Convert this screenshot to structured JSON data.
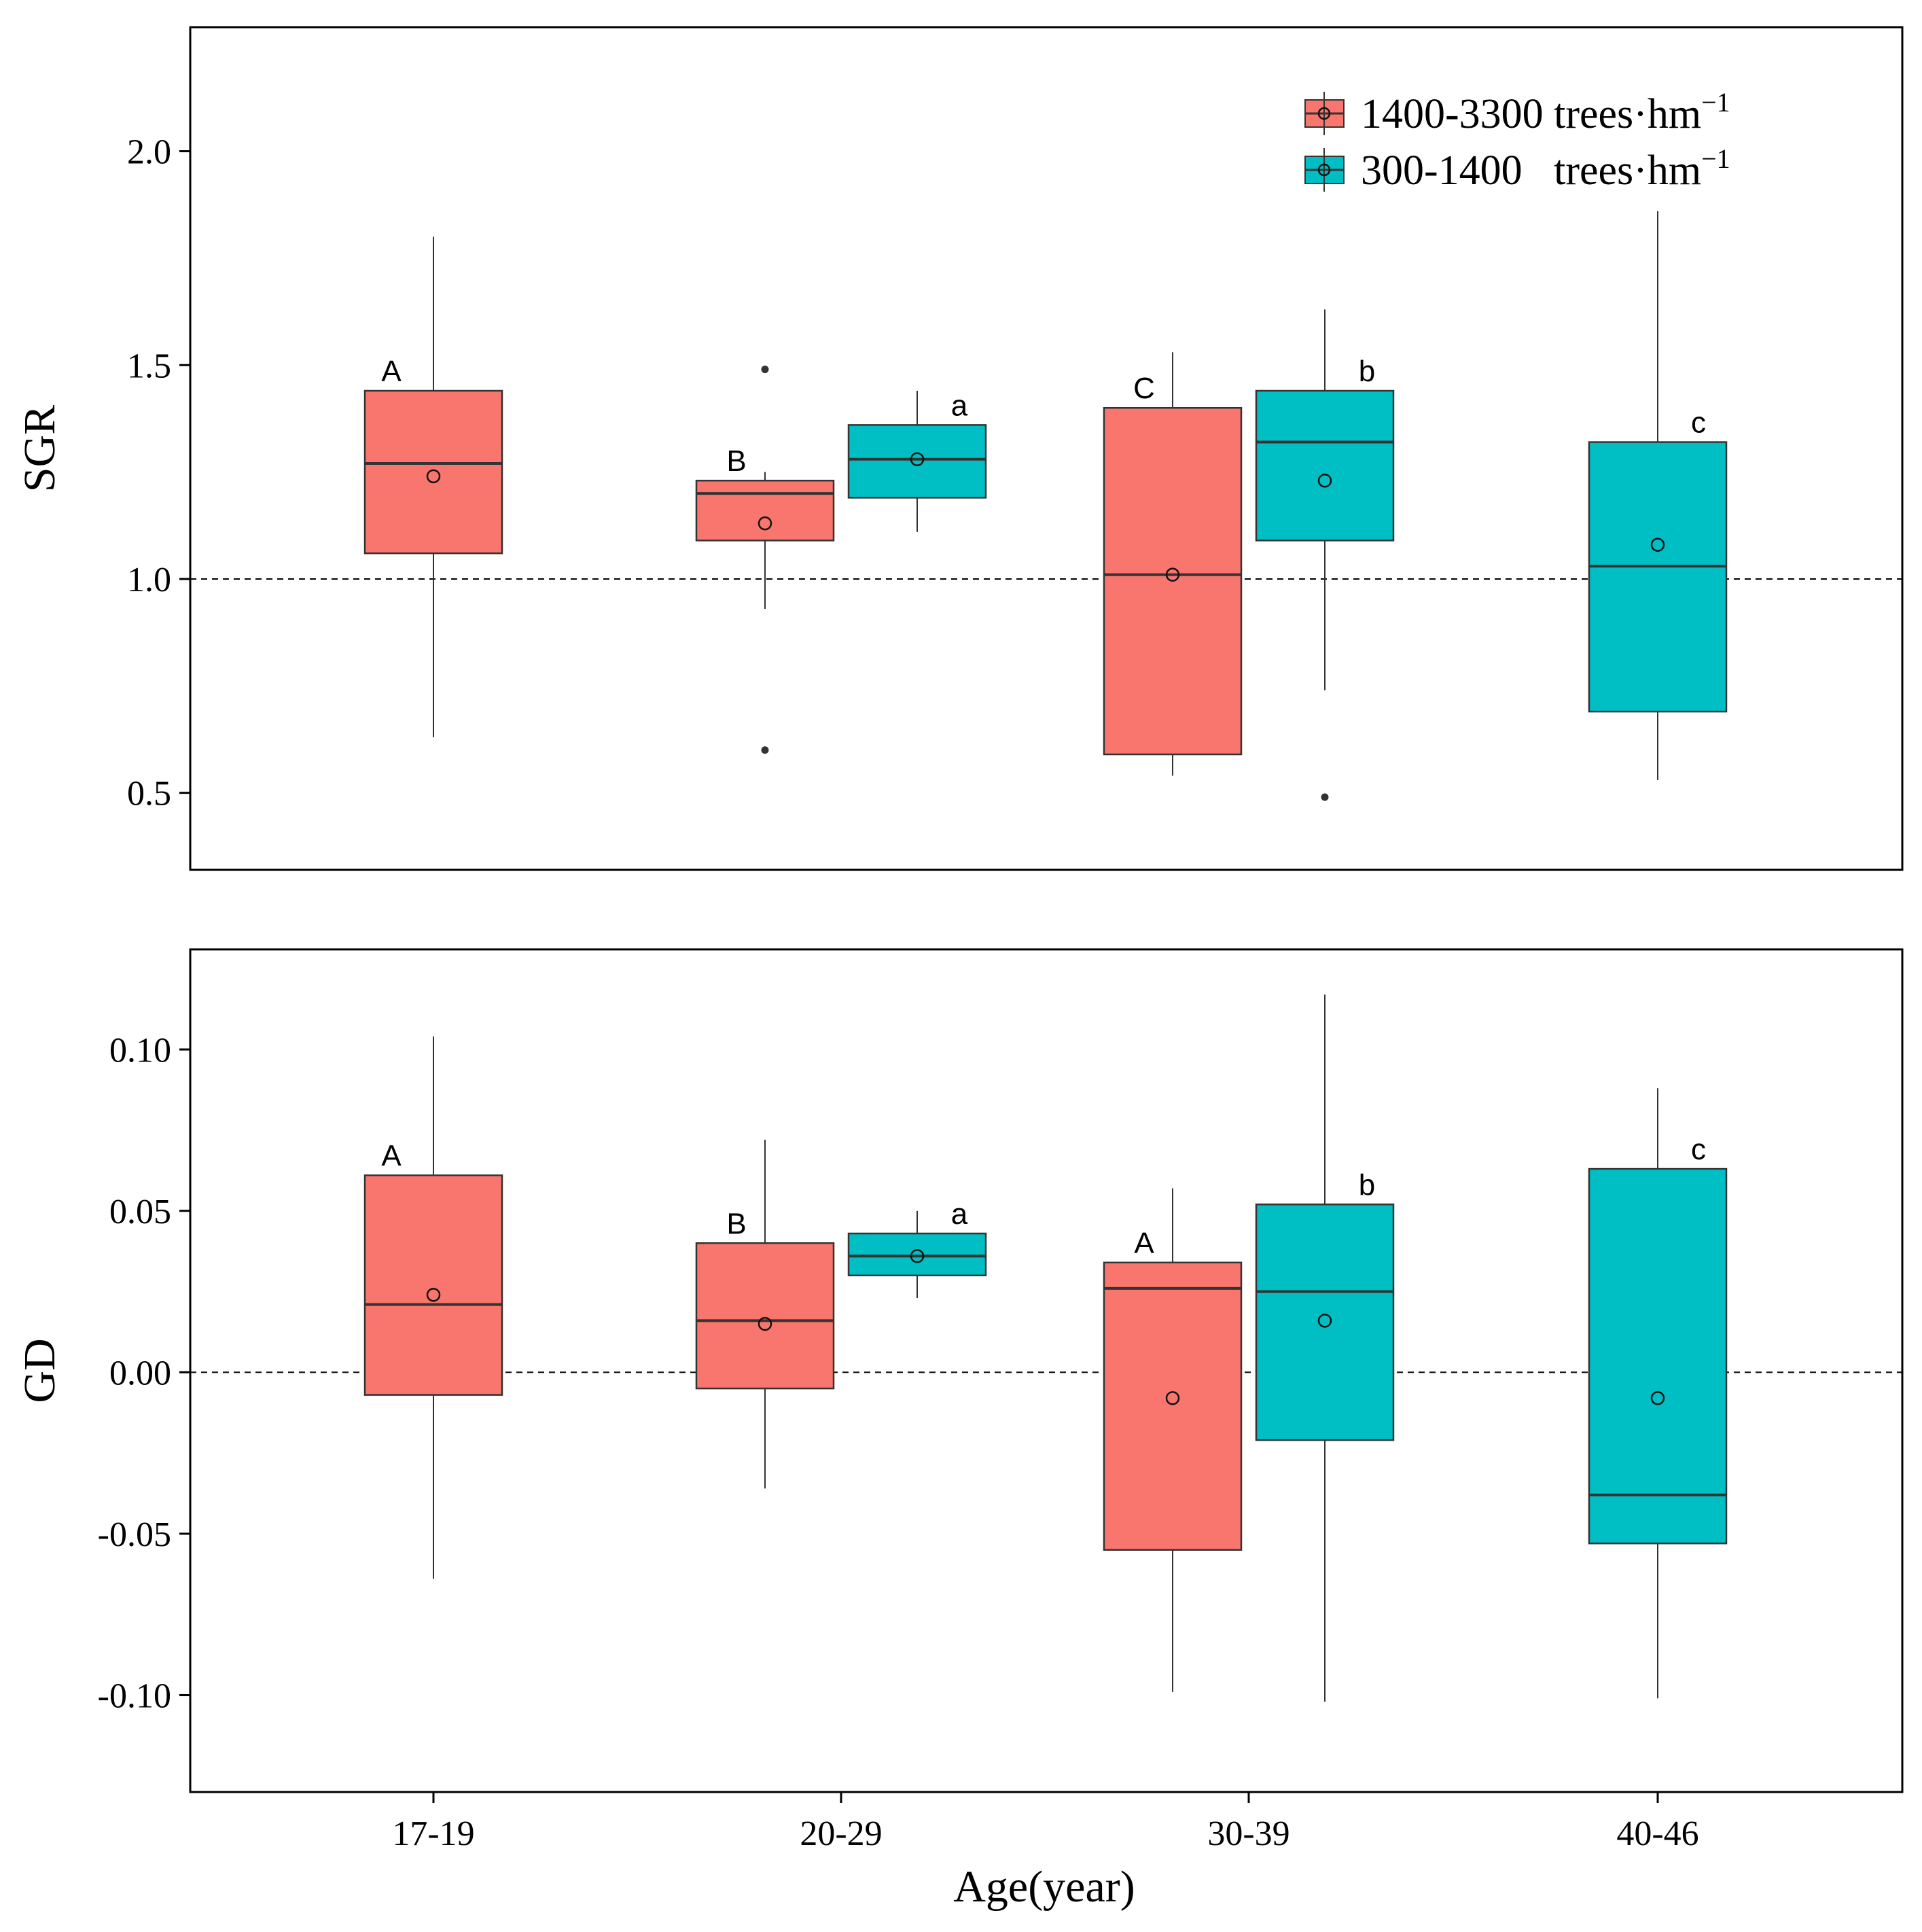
{
  "chart_data": {
    "type": "boxplot",
    "xlabel": "Age(year)",
    "categories": [
      "17-19",
      "20-29",
      "30-39",
      "40-46"
    ],
    "legend": {
      "position": "top-right",
      "entries": [
        {
          "name": "1400-3300 trees·hm",
          "sup": "−1",
          "color": "#F8766D"
        },
        {
          "name": "300-1400   trees·hm",
          "sup": "−1",
          "color": "#00BFC4"
        }
      ]
    },
    "panels": [
      {
        "ylabel": "SGR",
        "ylim": [
          0.32,
          2.29
        ],
        "yticks": [
          0.5,
          1.0,
          1.5,
          2.0
        ],
        "yticklabels": [
          "0.5",
          "1.0",
          "1.5",
          "2.0"
        ],
        "reference_line": 1.0,
        "boxes": [
          {
            "category": "17-19",
            "series": 0,
            "offset": 0,
            "min": 0.63,
            "q1": 1.06,
            "median": 1.27,
            "q3": 1.44,
            "max": 1.8,
            "mean": 1.24,
            "outliers": [],
            "letter": "A"
          },
          {
            "category": "20-29",
            "series": 0,
            "offset": -1,
            "min": 0.93,
            "q1": 1.09,
            "median": 1.2,
            "q3": 1.23,
            "max": 1.25,
            "mean": 1.13,
            "outliers": [
              1.49,
              0.6
            ],
            "letter": "B"
          },
          {
            "category": "20-29",
            "series": 1,
            "offset": 1,
            "min": 1.11,
            "q1": 1.19,
            "median": 1.28,
            "q3": 1.36,
            "max": 1.44,
            "mean": 1.28,
            "outliers": [],
            "letter": "a"
          },
          {
            "category": "30-39",
            "series": 0,
            "offset": -1,
            "min": 0.54,
            "q1": 0.59,
            "median": 1.01,
            "q3": 1.4,
            "max": 1.53,
            "mean": 1.01,
            "outliers": [],
            "letter": "C"
          },
          {
            "category": "30-39",
            "series": 1,
            "offset": 1,
            "min": 0.74,
            "q1": 1.09,
            "median": 1.32,
            "q3": 1.44,
            "max": 1.63,
            "mean": 1.23,
            "outliers": [
              0.49
            ],
            "letter": "b"
          },
          {
            "category": "40-46",
            "series": 1,
            "offset": 0,
            "min": 0.53,
            "q1": 0.69,
            "median": 1.03,
            "q3": 1.32,
            "max": 1.86,
            "mean": 1.08,
            "outliers": [],
            "letter": "c"
          }
        ]
      },
      {
        "ylabel": "GD",
        "ylim": [
          -0.13,
          0.131
        ],
        "yticks": [
          -0.1,
          -0.05,
          0.0,
          0.05,
          0.1
        ],
        "yticklabels": [
          "-0.10",
          "-0.05",
          "0.00",
          "0.05",
          "0.10"
        ],
        "reference_line": 0.0,
        "boxes": [
          {
            "category": "17-19",
            "series": 0,
            "offset": 0,
            "min": -0.064,
            "q1": -0.007,
            "median": 0.021,
            "q3": 0.061,
            "max": 0.104,
            "mean": 0.024,
            "outliers": [],
            "letter": "A"
          },
          {
            "category": "20-29",
            "series": 0,
            "offset": -1,
            "min": -0.036,
            "q1": -0.005,
            "median": 0.016,
            "q3": 0.04,
            "max": 0.072,
            "mean": 0.015,
            "outliers": [],
            "letter": "B"
          },
          {
            "category": "20-29",
            "series": 1,
            "offset": 1,
            "min": 0.023,
            "q1": 0.03,
            "median": 0.036,
            "q3": 0.043,
            "max": 0.05,
            "mean": 0.036,
            "outliers": [],
            "letter": "a"
          },
          {
            "category": "30-39",
            "series": 0,
            "offset": -1,
            "min": -0.099,
            "q1": -0.055,
            "median": 0.026,
            "q3": 0.034,
            "max": 0.057,
            "mean": -0.008,
            "outliers": [],
            "letter": "A"
          },
          {
            "category": "30-39",
            "series": 1,
            "offset": 1,
            "min": -0.102,
            "q1": -0.021,
            "median": 0.025,
            "q3": 0.052,
            "max": 0.117,
            "mean": 0.016,
            "outliers": [],
            "letter": "b"
          },
          {
            "category": "40-46",
            "series": 1,
            "offset": 0,
            "min": -0.101,
            "q1": -0.053,
            "median": -0.038,
            "q3": 0.063,
            "max": 0.088,
            "mean": -0.008,
            "outliers": [],
            "letter": "c"
          }
        ]
      }
    ]
  }
}
